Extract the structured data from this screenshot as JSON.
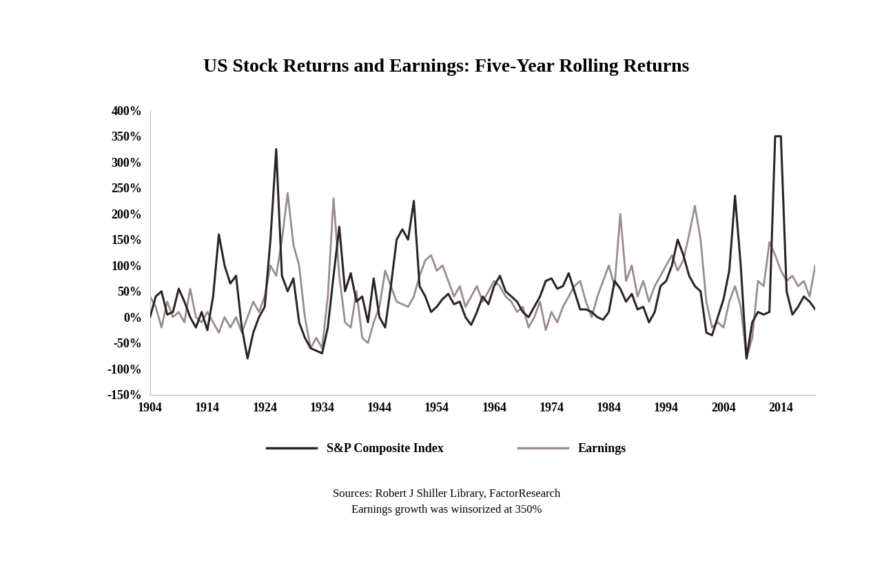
{
  "chart_data": {
    "type": "line",
    "title": "US Stock Returns and Earnings: Five-Year Rolling Returns",
    "annotations": [
      "Sources: Robert J Shiller Library, FactorResearch",
      "Earnings growth was winsorized at 350%"
    ],
    "x": [
      1904,
      1905,
      1906,
      1907,
      1908,
      1909,
      1910,
      1911,
      1912,
      1913,
      1914,
      1915,
      1916,
      1917,
      1918,
      1919,
      1920,
      1921,
      1922,
      1923,
      1924,
      1925,
      1926,
      1927,
      1928,
      1929,
      1930,
      1931,
      1932,
      1933,
      1934,
      1935,
      1936,
      1937,
      1938,
      1939,
      1940,
      1941,
      1942,
      1943,
      1944,
      1945,
      1946,
      1947,
      1948,
      1949,
      1950,
      1951,
      1952,
      1953,
      1954,
      1955,
      1956,
      1957,
      1958,
      1959,
      1960,
      1961,
      1962,
      1963,
      1964,
      1965,
      1966,
      1967,
      1968,
      1969,
      1970,
      1971,
      1972,
      1973,
      1974,
      1975,
      1976,
      1977,
      1978,
      1979,
      1980,
      1981,
      1982,
      1983,
      1984,
      1985,
      1986,
      1987,
      1988,
      1989,
      1990,
      1991,
      1992,
      1993,
      1994,
      1995,
      1996,
      1997,
      1998,
      1999,
      2000,
      2001,
      2002,
      2003,
      2004,
      2005,
      2006,
      2007,
      2008,
      2009,
      2010,
      2011,
      2012,
      2013,
      2014,
      2015,
      2016,
      2017,
      2018,
      2019,
      2020
    ],
    "series": [
      {
        "name": "S&P Composite Index",
        "color": "#2b2424",
        "line_style": "solid",
        "values": [
          0,
          40,
          50,
          5,
          10,
          55,
          30,
          0,
          -20,
          10,
          -25,
          40,
          160,
          100,
          65,
          80,
          -20,
          -80,
          -30,
          0,
          20,
          150,
          325,
          80,
          50,
          75,
          -10,
          -40,
          -60,
          -65,
          -70,
          -20,
          80,
          175,
          50,
          85,
          30,
          40,
          -10,
          75,
          0,
          -20,
          60,
          150,
          170,
          150,
          225,
          60,
          40,
          10,
          20,
          35,
          45,
          25,
          30,
          0,
          -15,
          10,
          40,
          25,
          60,
          80,
          50,
          40,
          30,
          10,
          0,
          20,
          40,
          70,
          75,
          55,
          60,
          85,
          50,
          15,
          15,
          10,
          0,
          -5,
          10,
          70,
          55,
          30,
          45,
          15,
          20,
          -10,
          10,
          60,
          70,
          100,
          150,
          120,
          80,
          60,
          50,
          -30,
          -35,
          0,
          35,
          90,
          235,
          100,
          -80,
          -10,
          10,
          5,
          10,
          350,
          350,
          50,
          5,
          20,
          40,
          30,
          15
        ]
      },
      {
        "name": "Earnings",
        "color": "#9a8c8a",
        "line_style": "solid",
        "values": [
          40,
          20,
          -20,
          30,
          0,
          10,
          -10,
          55,
          0,
          -10,
          10,
          -10,
          -30,
          0,
          -20,
          0,
          -30,
          0,
          30,
          10,
          40,
          100,
          80,
          150,
          240,
          140,
          100,
          0,
          -60,
          -40,
          -60,
          40,
          230,
          80,
          -10,
          -20,
          50,
          -40,
          -50,
          -10,
          20,
          90,
          60,
          30,
          25,
          20,
          40,
          80,
          110,
          120,
          90,
          100,
          70,
          40,
          60,
          20,
          40,
          60,
          30,
          50,
          70,
          60,
          40,
          30,
          10,
          20,
          -20,
          0,
          30,
          -25,
          10,
          -10,
          20,
          40,
          60,
          70,
          30,
          0,
          40,
          70,
          100,
          60,
          200,
          70,
          100,
          40,
          70,
          30,
          60,
          80,
          100,
          120,
          90,
          110,
          160,
          215,
          150,
          30,
          -20,
          -10,
          -20,
          30,
          60,
          20,
          -80,
          -40,
          70,
          60,
          145,
          120,
          90,
          70,
          80,
          60,
          70,
          40,
          100
        ]
      }
    ],
    "xlim": [
      1904,
      2020
    ],
    "xticks": [
      1904,
      1914,
      1924,
      1934,
      1944,
      1954,
      1964,
      1974,
      1984,
      1994,
      2004,
      2014
    ],
    "ylim": [
      -150,
      400
    ],
    "yticks": [
      {
        "value": -150,
        "label": "-150%"
      },
      {
        "value": -100,
        "label": "-100%"
      },
      {
        "value": -50,
        "label": "-50%"
      },
      {
        "value": 0,
        "label": "0%"
      },
      {
        "value": 50,
        "label": "50%"
      },
      {
        "value": 100,
        "label": "100%"
      },
      {
        "value": 150,
        "label": "150%"
      },
      {
        "value": 200,
        "label": "200%"
      },
      {
        "value": 250,
        "label": "250%"
      },
      {
        "value": 300,
        "label": "300%"
      },
      {
        "value": 350,
        "label": "350%"
      },
      {
        "value": 400,
        "label": "400%"
      }
    ],
    "grid": false,
    "legend": "upper center"
  }
}
